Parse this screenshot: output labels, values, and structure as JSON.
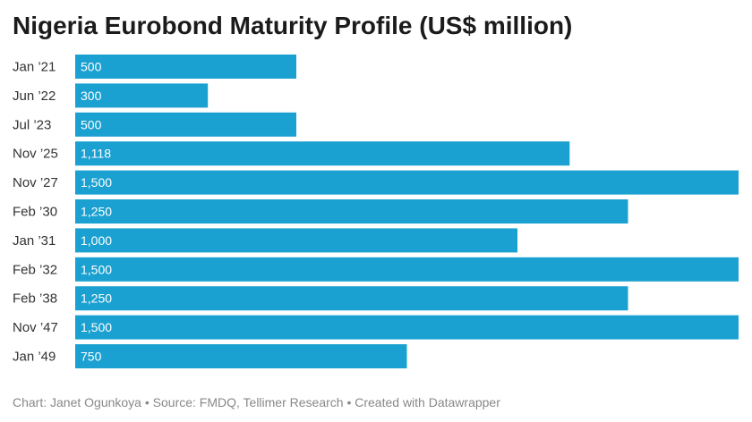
{
  "title": "Nigeria Eurobond Maturity Profile (US$ million)",
  "footer": {
    "credit": "Chart: Janet Ogunkoya • Source: FMDQ, Tellimer Research • Created with Datawrapper"
  },
  "colors": {
    "bar": "#1ba1d1",
    "bar_label": "#ffffff",
    "category_label": "#333333"
  },
  "chart_data": {
    "type": "bar",
    "orientation": "horizontal",
    "title": "Nigeria Eurobond Maturity Profile (US$ million)",
    "categories": [
      "Jan ’21",
      "Jun ’22",
      "Jul ’23",
      "Nov ’25",
      "Nov ’27",
      "Feb ’30",
      "Jan ’31",
      "Feb ’32",
      "Feb ’38",
      "Nov ’47",
      "Jan ’49"
    ],
    "values": [
      500,
      300,
      500,
      1118,
      1500,
      1250,
      1000,
      1500,
      1250,
      1500,
      750
    ],
    "value_labels": [
      "500",
      "300",
      "500",
      "1,118",
      "1,500",
      "1,250",
      "1,000",
      "1,500",
      "1,250",
      "1,500",
      "750"
    ],
    "xlim": [
      0,
      1500
    ],
    "grid": false,
    "legend": "none"
  }
}
